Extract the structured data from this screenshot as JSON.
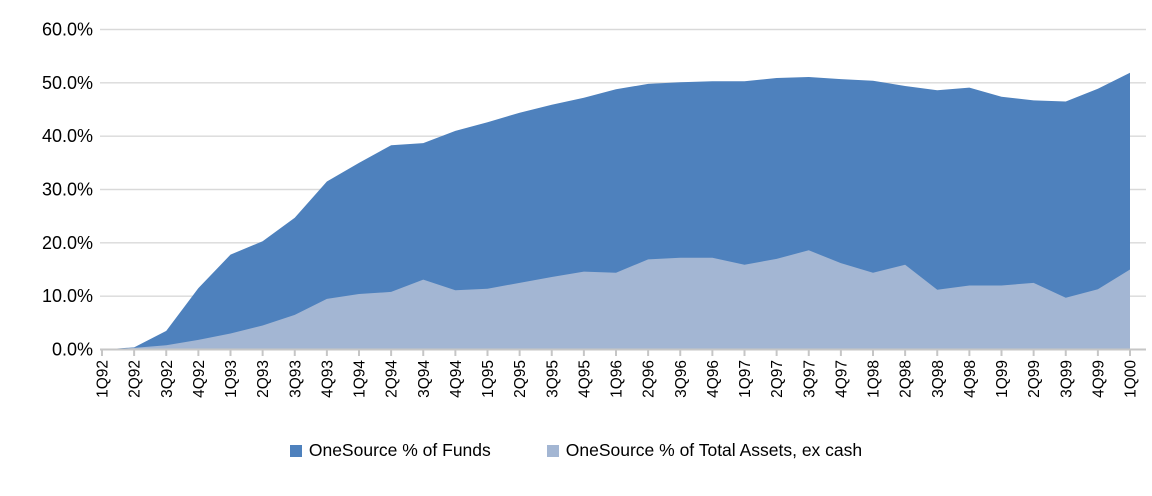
{
  "chart_data": {
    "type": "area",
    "title": "",
    "xlabel": "",
    "ylabel": "",
    "categories": [
      "1Q92",
      "2Q92",
      "3Q92",
      "4Q92",
      "1Q93",
      "2Q93",
      "3Q93",
      "4Q93",
      "1Q94",
      "2Q94",
      "3Q94",
      "4Q94",
      "1Q95",
      "2Q95",
      "3Q95",
      "4Q95",
      "1Q96",
      "2Q96",
      "3Q96",
      "4Q96",
      "1Q97",
      "2Q97",
      "3Q97",
      "4Q97",
      "1Q98",
      "2Q98",
      "3Q98",
      "4Q98",
      "1Q99",
      "2Q99",
      "3Q99",
      "4Q99",
      "1Q00"
    ],
    "series": [
      {
        "name": "OneSource % of Funds",
        "color": "#4E81BD",
        "values": [
          0,
          0.4,
          3.5,
          11.5,
          17.8,
          20.3,
          24.7,
          31.5,
          35.0,
          38.3,
          38.7,
          41.0,
          42.6,
          44.4,
          45.9,
          47.2,
          48.8,
          49.8,
          50.1,
          50.3,
          50.3,
          50.9,
          51.1,
          50.7,
          50.4,
          49.4,
          48.6,
          49.1,
          47.4,
          46.7,
          46.5,
          48.9,
          51.9
        ]
      },
      {
        "name": "OneSource % of Total Assets, ex cash",
        "color": "#A3B6D3",
        "values": [
          0,
          0.3,
          0.8,
          1.8,
          3.0,
          4.5,
          6.5,
          9.5,
          10.4,
          10.8,
          13.1,
          11.1,
          11.4,
          12.5,
          13.6,
          14.6,
          14.4,
          16.9,
          17.2,
          17.2,
          15.9,
          17.0,
          18.6,
          16.2,
          14.4,
          15.9,
          11.2,
          12.0,
          12.0,
          12.5,
          9.7,
          11.3,
          15.0
        ]
      }
    ],
    "ylim": [
      0,
      60
    ],
    "y_ticks": [
      0,
      10,
      20,
      30,
      40,
      50,
      60
    ],
    "y_tick_labels": [
      "0.0%",
      "10.0%",
      "20.0%",
      "30.0%",
      "40.0%",
      "50.0%",
      "60.0%"
    ],
    "grid": true,
    "legend_position": "bottom",
    "gridline_color": "#D9D9D9",
    "axis_color": "#C6C6C6",
    "text_color": "#000000"
  }
}
